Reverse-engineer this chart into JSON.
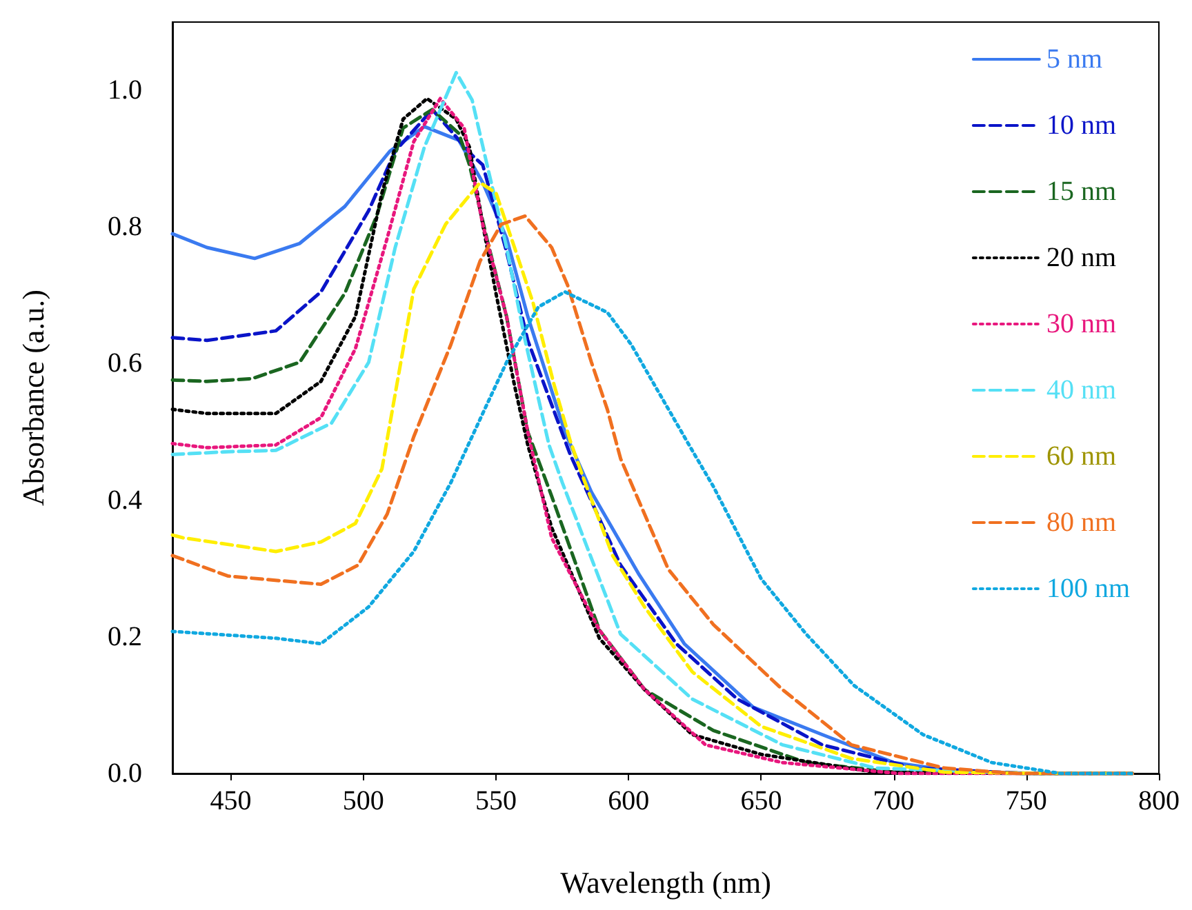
{
  "chart_data": {
    "type": "line",
    "xlabel": "Wavelength (nm)",
    "ylabel": "Absorbance (a.u.)",
    "xlim": [
      428,
      800
    ],
    "xticks": [
      450,
      500,
      550,
      600,
      650,
      700,
      750,
      800
    ],
    "ylim": [
      0,
      1.1
    ],
    "yticks": [
      {
        "value": 0,
        "label": "0.0"
      },
      {
        "value": 0.2,
        "label": "0.2"
      },
      {
        "value": 0.4,
        "label": "0.4"
      },
      {
        "value": 0.6,
        "label": "0.6"
      },
      {
        "value": 0.8,
        "label": "0.8"
      },
      {
        "value": 1.0,
        "label": "1.0"
      }
    ],
    "grid": false,
    "legend": "top right",
    "marker": "none",
    "series": [
      {
        "name": "5 nm",
        "color": "#3a7af0",
        "line_style": "solid",
        "x": [
          428,
          441,
          459,
          476,
          493,
          510,
          523,
          536,
          545,
          554,
          562,
          576,
          586,
          604,
          621,
          647,
          673,
          700,
          726,
          760,
          790
        ],
        "values": [
          0.79,
          0.77,
          0.754,
          0.776,
          0.83,
          0.911,
          0.947,
          0.927,
          0.865,
          0.784,
          0.669,
          0.5,
          0.412,
          0.291,
          0.19,
          0.097,
          0.057,
          0.016,
          0.002,
          0,
          0
        ]
      },
      {
        "name": "10 nm",
        "color": "#0a14c8",
        "line_style": "dashed",
        "x": [
          428,
          441,
          467,
          484,
          502,
          512,
          526,
          541,
          545,
          554,
          562,
          578,
          597,
          618,
          641,
          673,
          708,
          750,
          790
        ],
        "values": [
          0.638,
          0.634,
          0.648,
          0.705,
          0.824,
          0.911,
          0.972,
          0.905,
          0.891,
          0.764,
          0.634,
          0.467,
          0.305,
          0.19,
          0.109,
          0.042,
          0.008,
          0,
          0
        ]
      },
      {
        "name": "15 nm",
        "color": "#1a6620",
        "line_style": "dashed",
        "x": [
          428,
          441,
          458,
          476,
          493,
          505,
          515,
          526,
          536,
          540,
          547,
          554,
          562,
          571,
          589,
          606,
          632,
          667,
          700,
          750,
          790
        ],
        "values": [
          0.576,
          0.574,
          0.578,
          0.602,
          0.703,
          0.816,
          0.945,
          0.972,
          0.937,
          0.891,
          0.776,
          0.669,
          0.5,
          0.406,
          0.21,
          0.123,
          0.063,
          0.016,
          0.002,
          0,
          0
        ]
      },
      {
        "name": "20 nm",
        "color": "#000000",
        "line_style": "dotted",
        "x": [
          428,
          441,
          467,
          484,
          497,
          507,
          515,
          524,
          535,
          540,
          545,
          550,
          557,
          562,
          571,
          589,
          606,
          624,
          650,
          693,
          750,
          790
        ],
        "values": [
          0.533,
          0.527,
          0.527,
          0.574,
          0.669,
          0.85,
          0.958,
          0.988,
          0.958,
          0.917,
          0.804,
          0.703,
          0.568,
          0.481,
          0.36,
          0.198,
          0.123,
          0.057,
          0.028,
          0.002,
          0,
          0
        ]
      },
      {
        "name": "30 nm",
        "color": "#e8177d",
        "line_style": "dotted",
        "x": [
          428,
          441,
          467,
          484,
          497,
          509,
          519,
          529,
          538,
          545,
          554,
          562,
          571,
          589,
          606,
          629,
          658,
          702,
          750,
          790
        ],
        "values": [
          0.483,
          0.477,
          0.481,
          0.521,
          0.622,
          0.784,
          0.925,
          0.988,
          0.945,
          0.804,
          0.669,
          0.5,
          0.345,
          0.21,
          0.123,
          0.042,
          0.016,
          0,
          0,
          0
        ]
      },
      {
        "name": "40 nm",
        "color": "#55e0f5",
        "line_style": "dashed",
        "x": [
          428,
          449,
          467,
          488,
          502,
          512,
          523,
          535,
          541,
          547,
          554,
          561,
          570,
          575,
          597,
          624,
          658,
          693,
          750,
          790
        ],
        "values": [
          0.467,
          0.471,
          0.473,
          0.513,
          0.602,
          0.77,
          0.917,
          1.026,
          0.986,
          0.885,
          0.77,
          0.634,
          0.481,
          0.426,
          0.204,
          0.109,
          0.042,
          0.008,
          0,
          0
        ]
      },
      {
        "name": "60 nm",
        "color": "#ffee00",
        "line_style": "dashed",
        "x": [
          428,
          432,
          467,
          484,
          497,
          507,
          519,
          531,
          544,
          550,
          557,
          564,
          572,
          578,
          583,
          594,
          606,
          624,
          650,
          684,
          719,
          760,
          790
        ],
        "values": [
          0.349,
          0.345,
          0.325,
          0.339,
          0.366,
          0.446,
          0.709,
          0.804,
          0.865,
          0.85,
          0.77,
          0.689,
          0.568,
          0.487,
          0.432,
          0.319,
          0.244,
          0.149,
          0.069,
          0.022,
          0.002,
          0,
          0
        ]
      },
      {
        "name": "80 nm",
        "color": "#f07020",
        "line_style": "dashed",
        "x": [
          428,
          449,
          484,
          498,
          509,
          519,
          533,
          544,
          552,
          561,
          571,
          577,
          586,
          592,
          597,
          615,
          632,
          658,
          684,
          719,
          746,
          790
        ],
        "values": [
          0.319,
          0.289,
          0.277,
          0.305,
          0.38,
          0.493,
          0.628,
          0.75,
          0.804,
          0.816,
          0.77,
          0.715,
          0.602,
          0.533,
          0.461,
          0.299,
          0.218,
          0.123,
          0.042,
          0.008,
          0,
          0
        ]
      },
      {
        "name": "100 nm",
        "color": "#10a8e0",
        "line_style": "dotted",
        "x": [
          428,
          467,
          484,
          502,
          519,
          533,
          545,
          554,
          566,
          576,
          592,
          601,
          613,
          624,
          632,
          650,
          667,
          685,
          711,
          737,
          763,
          790
        ],
        "values": [
          0.208,
          0.198,
          0.19,
          0.244,
          0.325,
          0.426,
          0.527,
          0.602,
          0.683,
          0.705,
          0.675,
          0.628,
          0.547,
          0.473,
          0.42,
          0.285,
          0.204,
          0.129,
          0.057,
          0.016,
          0,
          0
        ]
      }
    ]
  }
}
